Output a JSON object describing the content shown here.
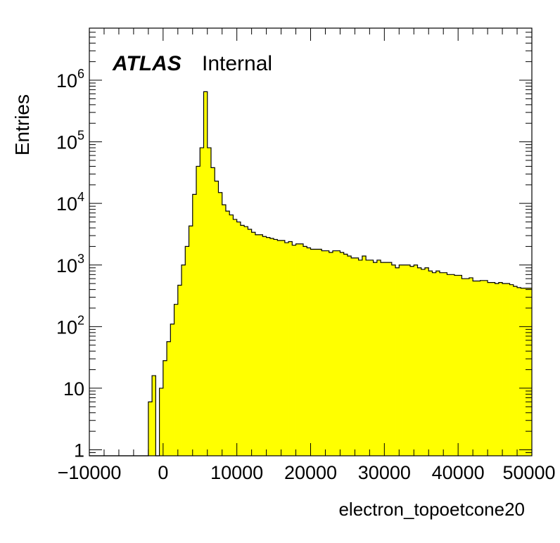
{
  "chart_data": {
    "type": "histogram",
    "annotation": {
      "experiment": "ATLAS",
      "status": "Internal"
    },
    "xlabel": "electron_topoetcone20",
    "ylabel": "Entries",
    "xlim": [
      -10000,
      50000
    ],
    "ylim": [
      0.8,
      7000000
    ],
    "y_scale": "log",
    "grid": false,
    "fill_color": "#ffff00",
    "line_color": "#000000",
    "x_ticks": [
      -10000,
      0,
      10000,
      20000,
      30000,
      40000,
      50000
    ],
    "x_tick_labels": [
      "−10000",
      "0",
      "10000",
      "20000",
      "30000",
      "40000",
      "50000"
    ],
    "y_ticks": [
      1,
      10,
      100,
      1000,
      10000,
      100000,
      1000000
    ],
    "y_tick_labels": [
      {
        "base": "1",
        "exp": ""
      },
      {
        "base": "10",
        "exp": ""
      },
      {
        "base": "10",
        "exp": "2"
      },
      {
        "base": "10",
        "exp": "3"
      },
      {
        "base": "10",
        "exp": "4"
      },
      {
        "base": "10",
        "exp": "5"
      },
      {
        "base": "10",
        "exp": "6"
      }
    ],
    "bin_width": 500,
    "bin_lows": [
      -10000,
      -9500,
      -9000,
      -8500,
      -8000,
      -7500,
      -7000,
      -6500,
      -6000,
      -5500,
      -5000,
      -4500,
      -4000,
      -3500,
      -3000,
      -2500,
      -2000,
      -1500,
      -1000,
      -500,
      0,
      500,
      1000,
      1500,
      2000,
      2500,
      3000,
      3500,
      4000,
      4500,
      5000,
      5500,
      6000,
      6500,
      7000,
      7500,
      8000,
      8500,
      9000,
      9500,
      10000,
      10500,
      11000,
      11500,
      12000,
      12500,
      13000,
      13500,
      14000,
      14500,
      15000,
      15500,
      16000,
      16500,
      17000,
      17500,
      18000,
      18500,
      19000,
      19500,
      20000,
      20500,
      21000,
      21500,
      22000,
      22500,
      23000,
      23500,
      24000,
      24500,
      25000,
      25500,
      26000,
      26500,
      27000,
      27500,
      28000,
      28500,
      29000,
      29500,
      30000,
      30500,
      31000,
      31500,
      32000,
      32500,
      33000,
      33500,
      34000,
      34500,
      35000,
      35500,
      36000,
      36500,
      37000,
      37500,
      38000,
      38500,
      39000,
      39500,
      40000,
      40500,
      41000,
      41500,
      42000,
      42500,
      43000,
      43500,
      44000,
      44500,
      45000,
      45500,
      46000,
      46500,
      47000,
      47500,
      48000,
      48500,
      49000,
      49500
    ],
    "values": [
      0,
      0,
      0,
      0,
      0,
      0,
      0,
      0,
      0,
      0,
      0,
      0,
      0,
      0,
      0,
      0,
      6,
      16,
      0,
      10,
      28,
      57,
      110,
      230,
      470,
      1000,
      2000,
      4300,
      14000,
      40000,
      80000,
      650000,
      80000,
      38000,
      23000,
      15000,
      9500,
      7500,
      6500,
      5500,
      5000,
      4400,
      4200,
      3800,
      3400,
      3100,
      3100,
      2900,
      2800,
      2700,
      2600,
      2500,
      2500,
      2300,
      2400,
      2100,
      2200,
      2200,
      2000,
      1900,
      1800,
      1800,
      1800,
      1700,
      1700,
      1600,
      1700,
      1700,
      1600,
      1500,
      1400,
      1300,
      1300,
      1200,
      1400,
      1200,
      1200,
      1100,
      1200,
      1100,
      1100,
      1100,
      1000,
      900,
      1000,
      1000,
      1000,
      950,
      1000,
      900,
      850,
      900,
      800,
      750,
      800,
      750,
      750,
      700,
      700,
      680,
      680,
      600,
      600,
      620,
      550,
      550,
      560,
      560,
      520,
      520,
      500,
      520,
      500,
      500,
      480,
      450,
      430,
      420,
      420,
      420
    ]
  }
}
